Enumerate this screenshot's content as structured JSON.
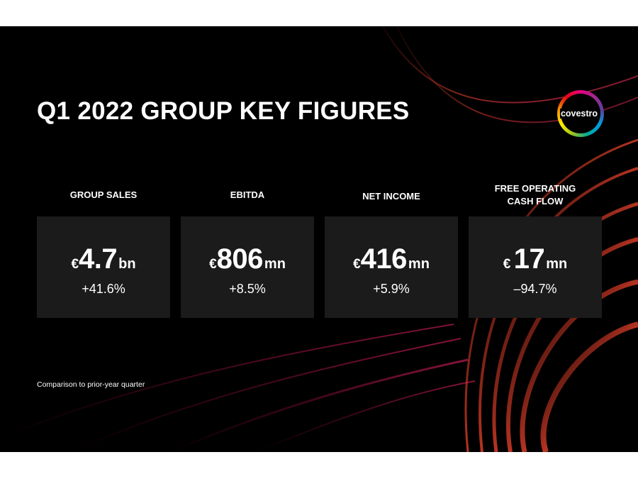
{
  "slide": {
    "title": "Q1 2022 GROUP KEY FIGURES",
    "logo_text": "covestro",
    "footnote": "Comparison to prior-year quarter"
  },
  "kpis": [
    {
      "label": "GROUP SALES",
      "currency": "€",
      "value": "4.7",
      "unit": "bn",
      "change": "+41.6%"
    },
    {
      "label": "EBITDA",
      "currency": "€",
      "value": "806",
      "unit": "mn",
      "change": "+8.5%"
    },
    {
      "label": "NET INCOME",
      "currency": "€",
      "value": "416",
      "unit": "mn",
      "change": "+5.9%"
    },
    {
      "label": "FREE OPERATING CASH FLOW",
      "currency": "€",
      "value": "17",
      "unit": "mn",
      "change": "–94.7%"
    }
  ],
  "colors": {
    "background": "#000000",
    "card": "#1b1b1b",
    "accent_red": "#e03a3a",
    "accent_pink": "#e0206a"
  }
}
